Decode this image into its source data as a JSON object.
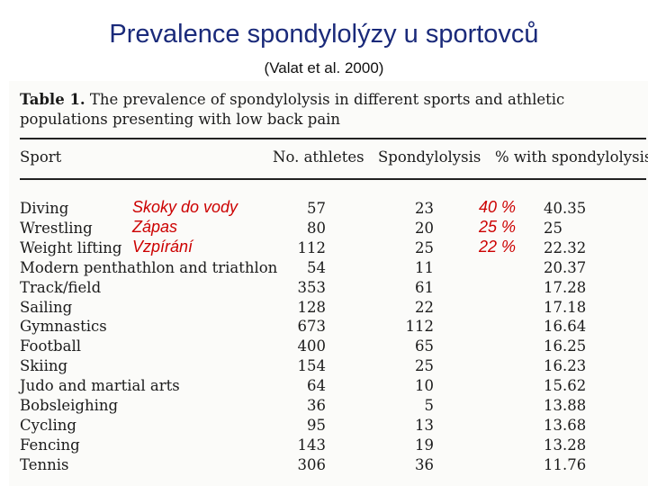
{
  "title": "Prevalence spondylolýzy u sportovců",
  "subtitle": "(Valat et al. 2000)",
  "caption": {
    "label": "Table 1.",
    "text": "The prevalence of spondylolysis in different sports and athletic populations presenting with low back pain"
  },
  "headers": {
    "sport": "Sport",
    "athletes": "No. athletes",
    "spondylolysis": "Spondylolysis",
    "percent": "% with spondylolysis"
  },
  "rows": [
    {
      "sport": "Diving",
      "athletes": "57",
      "spondylolysis": "23",
      "percent": "40.35"
    },
    {
      "sport": "Wrestling",
      "athletes": "80",
      "spondylolysis": "20",
      "percent": "25"
    },
    {
      "sport": "Weight lifting",
      "athletes": "112",
      "spondylolysis": "25",
      "percent": "22.32"
    },
    {
      "sport": "Modern penthathlon and triathlon",
      "athletes": "54",
      "spondylolysis": "11",
      "percent": "20.37"
    },
    {
      "sport": "Track/field",
      "athletes": "353",
      "spondylolysis": "61",
      "percent": "17.28"
    },
    {
      "sport": "Sailing",
      "athletes": "128",
      "spondylolysis": "22",
      "percent": "17.18"
    },
    {
      "sport": "Gymnastics",
      "athletes": "673",
      "spondylolysis": "112",
      "percent": "16.64"
    },
    {
      "sport": "Football",
      "athletes": "400",
      "spondylolysis": "65",
      "percent": "16.25"
    },
    {
      "sport": "Skiing",
      "athletes": "154",
      "spondylolysis": "25",
      "percent": "16.23"
    },
    {
      "sport": "Judo and martial arts",
      "athletes": "64",
      "spondylolysis": "10",
      "percent": "15.62"
    },
    {
      "sport": "Bobsleighing",
      "athletes": "36",
      "spondylolysis": "5",
      "percent": "13.88"
    },
    {
      "sport": "Cycling",
      "athletes": "95",
      "spondylolysis": "13",
      "percent": "13.68"
    },
    {
      "sport": "Fencing",
      "athletes": "143",
      "spondylolysis": "19",
      "percent": "13.28"
    },
    {
      "sport": "Tennis",
      "athletes": "306",
      "spondylolysis": "36",
      "percent": "11.76"
    }
  ],
  "annotations": {
    "czech_names": [
      "Skoky do vody",
      "Zápas",
      "Vzpírání"
    ],
    "percents": [
      "40 %",
      "25 %",
      "22 %"
    ]
  }
}
